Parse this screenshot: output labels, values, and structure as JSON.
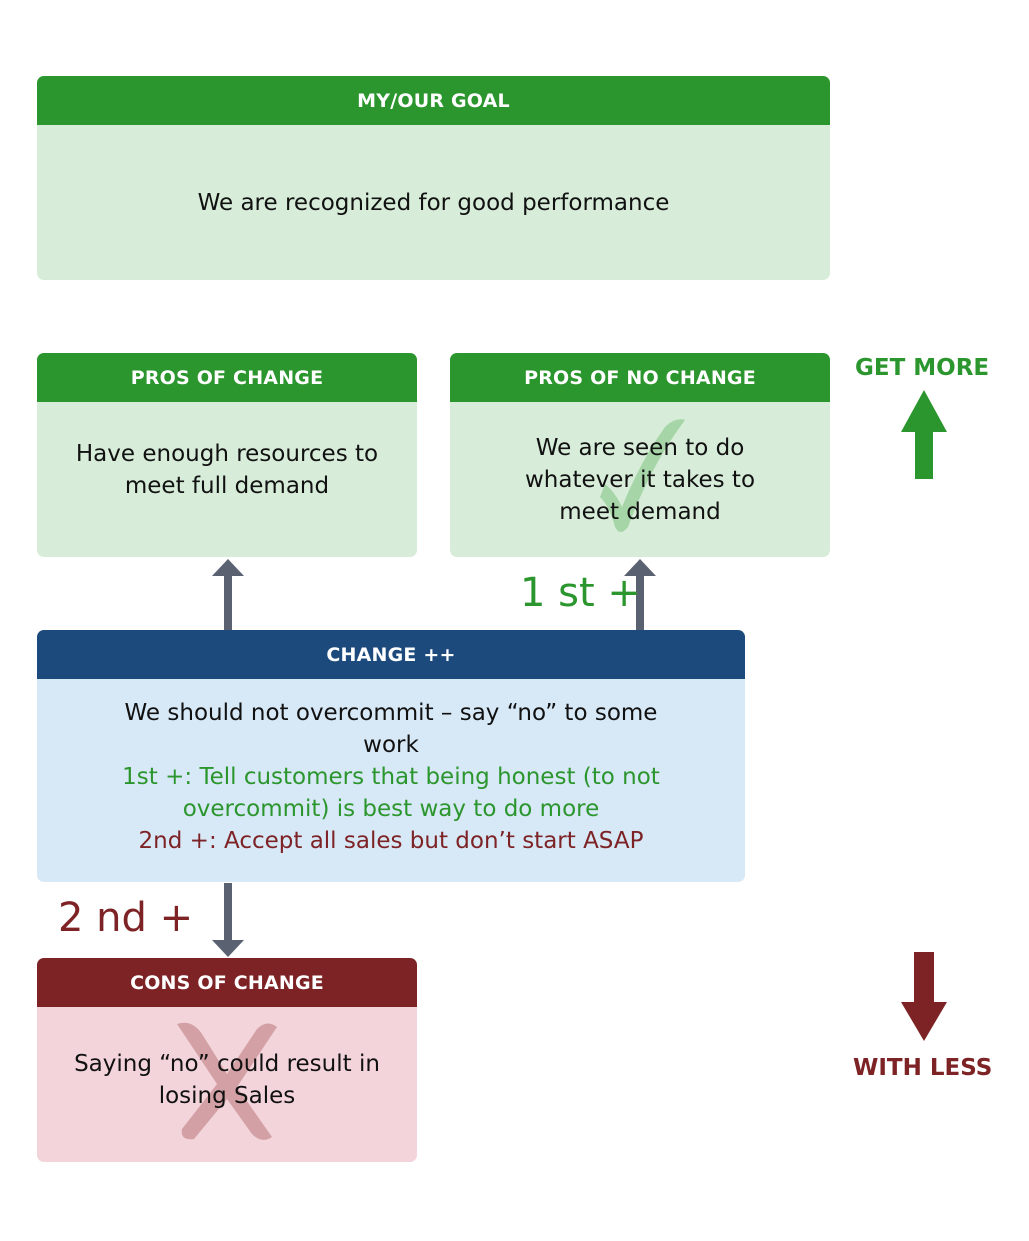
{
  "goal": {
    "title": "MY/OUR GOAL",
    "text": "We are recognized for good performance"
  },
  "pros_change": {
    "title": "PROS OF CHANGE",
    "text": "Have enough resources to meet full demand"
  },
  "pros_no_change": {
    "title": "PROS OF NO CHANGE",
    "text": "We are seen to do whatever it takes to meet demand",
    "mark": "checkmark-icon"
  },
  "change": {
    "title": "CHANGE ++",
    "text": "We should not overcommit – say “no” to some work",
    "first": "1st +: Tell customers that being honest (to not overcommit) is best way to do more",
    "second": "2nd +:  Accept all sales but don’t start ASAP"
  },
  "cons_change": {
    "title": "CONS OF CHANGE",
    "text": "Saying “no” could result in losing Sales",
    "mark": "x-icon"
  },
  "labels": {
    "first": "1 st +",
    "second": "2 nd +",
    "get_more": "GET MORE",
    "with_less": "WITH LESS"
  },
  "colors": {
    "green": "#2c962e",
    "blue": "#1c4a7c",
    "red": "#7d2326",
    "arrow": "#5a6170"
  }
}
